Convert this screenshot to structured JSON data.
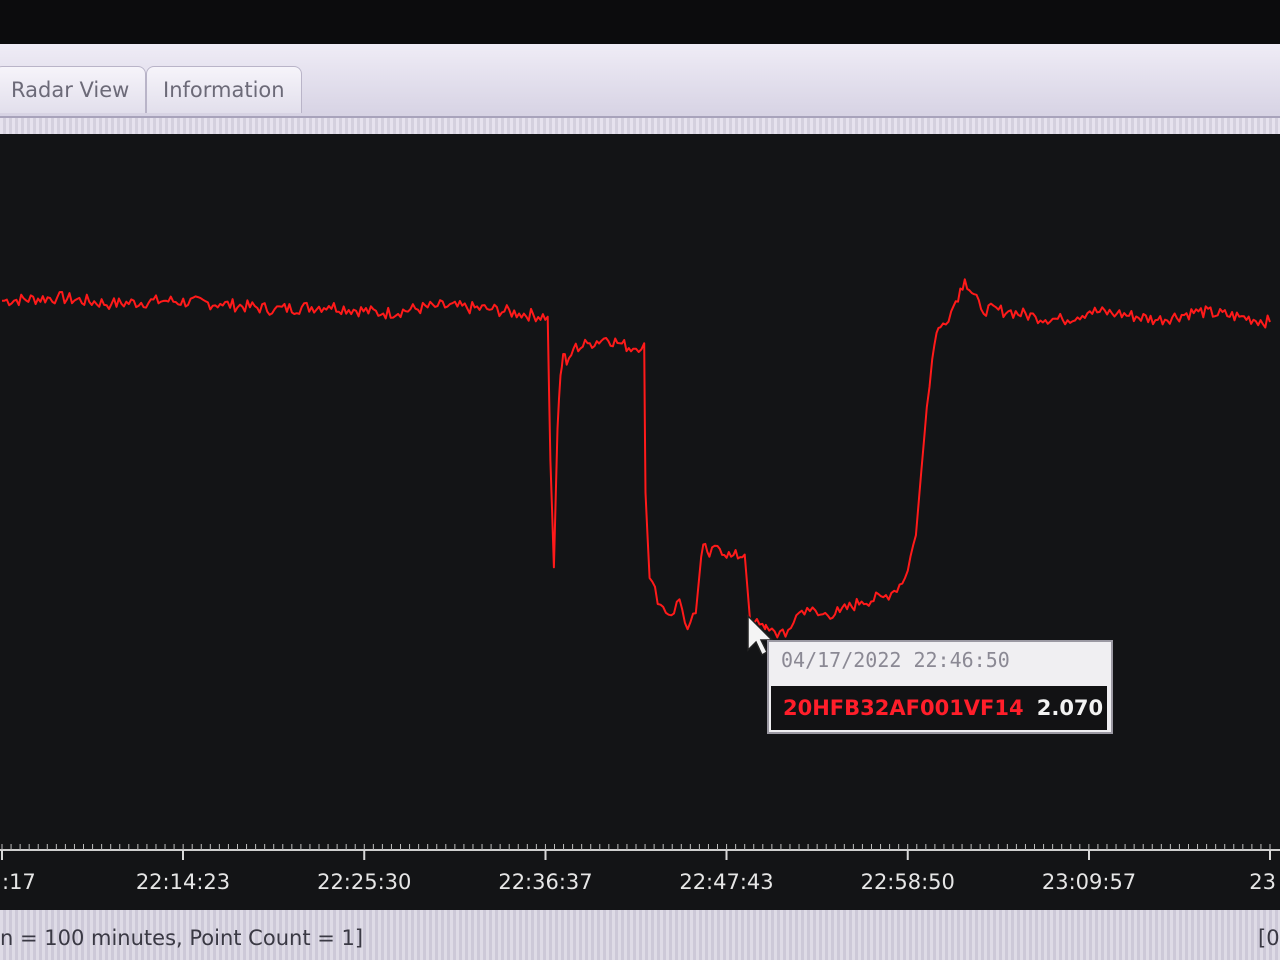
{
  "tabs": [
    {
      "label": "Radar View"
    },
    {
      "label": "Information"
    }
  ],
  "tooltip": {
    "timestamp": "04/17/2022 22:46:50",
    "tag": "20HFB32AF001VF14",
    "value": "2.070"
  },
  "status": {
    "left_text": "n = 100 minutes, Point Count = 1]",
    "right_text": "[0"
  },
  "colors": {
    "trace": "#ff1a1a",
    "background": "#131416",
    "axis": "#d9d9d9"
  },
  "chart_data": {
    "type": "line",
    "title": "",
    "xlabel": "",
    "ylabel": "",
    "x_tick_labels": [
      ":17",
      "22:14:23",
      "22:25:30",
      "22:36:37",
      "22:47:43",
      "22:58:50",
      "23:09:57",
      "23"
    ],
    "x_ticks_seconds": [
      48197,
      48863,
      49530,
      50197,
      50863,
      51530,
      52197,
      52863
    ],
    "xlim_seconds": [
      48197,
      52863
    ],
    "ylim": [
      0,
      6
    ],
    "series": [
      {
        "color": "#ff1a1a",
        "x_seconds": [
          48197,
          48400,
          48600,
          48800,
          49000,
          49200,
          49400,
          49600,
          49800,
          50000,
          50100,
          50205,
          50215,
          50228,
          50241,
          50252,
          50262,
          50275,
          50300,
          50360,
          50420,
          50470,
          50520,
          50560,
          50565,
          50580,
          50620,
          50660,
          50690,
          50720,
          50750,
          50770,
          50785,
          50800,
          50830,
          50880,
          50930,
          50950,
          50965,
          51005,
          51010,
          51040,
          51080,
          51120,
          51160,
          51200,
          51280,
          51360,
          51440,
          51480,
          51520,
          51560,
          51580,
          51600,
          51620,
          51636,
          51650,
          51690,
          51740,
          51800,
          51900,
          52000,
          52100,
          52200,
          52300,
          52450,
          52600,
          52750,
          52863
        ],
        "values": [
          5.0,
          5.03,
          4.97,
          5.0,
          4.97,
          4.92,
          4.95,
          4.88,
          4.95,
          4.92,
          4.88,
          4.85,
          3.5,
          2.5,
          3.8,
          4.3,
          4.5,
          4.4,
          4.55,
          4.6,
          4.65,
          4.6,
          4.55,
          4.6,
          3.2,
          2.4,
          2.15,
          2.05,
          2.2,
          1.92,
          2.07,
          2.6,
          2.72,
          2.6,
          2.7,
          2.6,
          2.62,
          2.0,
          1.98,
          1.92,
          1.95,
          1.9,
          1.85,
          2.05,
          2.12,
          2.05,
          2.08,
          2.18,
          2.22,
          2.28,
          2.4,
          2.8,
          3.4,
          4.0,
          4.45,
          4.7,
          4.75,
          4.9,
          5.2,
          4.92,
          4.9,
          4.85,
          4.82,
          4.9,
          4.88,
          4.82,
          4.9,
          4.85,
          4.8
        ]
      }
    ]
  }
}
